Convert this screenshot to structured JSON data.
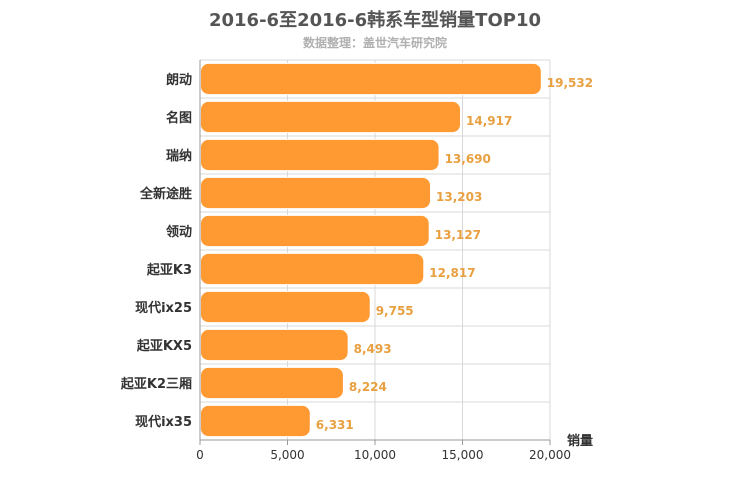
{
  "chart_data": {
    "type": "bar",
    "orientation": "horizontal",
    "title": "2016-6至2016-6韩系车型销量TOP10",
    "subtitle": "数据整理：盖世汽车研究院",
    "categories": [
      "朗动",
      "名图",
      "瑞纳",
      "全新途胜",
      "领动",
      "起亚K3",
      "现代ix25",
      "起亚KX5",
      "起亚K2三厢",
      "现代ix35"
    ],
    "values": [
      19532,
      14917,
      13690,
      13203,
      13127,
      12817,
      9755,
      8493,
      8224,
      6331
    ],
    "value_labels": [
      "19,532",
      "14,917",
      "13,690",
      "13,203",
      "13,127",
      "12,817",
      "9,755",
      "8,493",
      "8,224",
      "6,331"
    ],
    "xlabel": "销量",
    "ylabel": "",
    "xlim": [
      0,
      20000
    ],
    "xticks": [
      0,
      5000,
      10000,
      15000,
      20000
    ],
    "xtick_labels": [
      "0",
      "5,000",
      "10,000",
      "15,000",
      "20,000"
    ],
    "grid": true,
    "legend": "none",
    "colors": {
      "bar": "#ff9a33",
      "bar_border": "#ffffff",
      "value_label": "#e8a040",
      "grid": "#d8d8d8",
      "axis": "#999999"
    }
  }
}
